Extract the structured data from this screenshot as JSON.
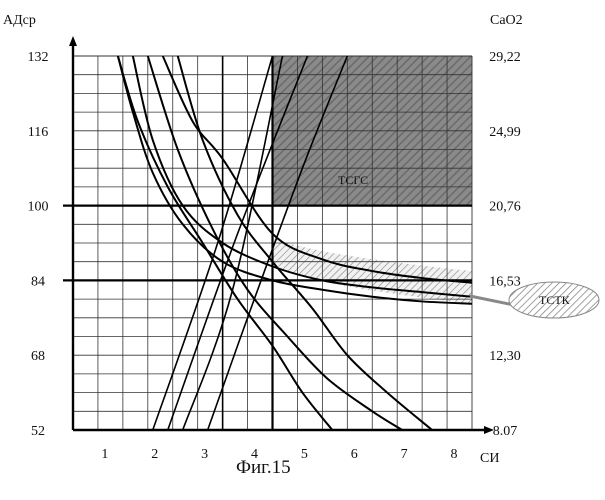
{
  "figure_caption": "Фиг.15",
  "chart_data": {
    "type": "line",
    "ylabel_left": "АДср",
    "ylabel_right": "CaO2",
    "xlabel": "СИ",
    "x_ticks": [
      "1",
      "2",
      "3",
      "4",
      "5",
      "6",
      "7",
      "8"
    ],
    "y_left_ticks": [
      "52",
      "68",
      "84",
      "100",
      "116",
      "132"
    ],
    "y_right_ticks": [
      "8.07",
      "12,30",
      "16,53",
      "20,76",
      "24,99",
      "29,22"
    ],
    "xlim": [
      0,
      8
    ],
    "ylim": [
      52,
      132
    ],
    "grid": true,
    "threshold_lines": {
      "x": 4,
      "y_upper": 100,
      "y_lower": 84
    },
    "regions": [
      {
        "label": "ТСГС",
        "x_range": [
          4,
          8
        ],
        "y_range": [
          100,
          132
        ],
        "fill": "dark-hatched"
      },
      {
        "label": "ТСТК",
        "x_range": [
          4,
          8
        ],
        "y_upper": [
          94,
          86
        ],
        "y_lower": [
          88,
          79
        ],
        "fill": "light-hatched"
      }
    ],
    "series": [
      {
        "kind": "hyperbola",
        "points": [
          [
            1.2,
            132
          ],
          [
            1.6,
            114
          ],
          [
            2.2,
            100
          ],
          [
            3,
            92
          ],
          [
            4,
            87
          ],
          [
            5,
            84
          ],
          [
            6,
            82.5
          ],
          [
            7,
            81.5
          ],
          [
            8,
            80.5
          ]
        ]
      },
      {
        "kind": "hyperbola",
        "points": [
          [
            1.8,
            132
          ],
          [
            2.4,
            118
          ],
          [
            3,
            110
          ],
          [
            4,
            94
          ],
          [
            5,
            88.5
          ],
          [
            6,
            86
          ],
          [
            7,
            84.5
          ],
          [
            8,
            83.5
          ]
        ]
      },
      {
        "kind": "hyperbola",
        "points": [
          [
            2.1,
            132
          ],
          [
            2.6,
            114
          ],
          [
            3.3,
            98
          ],
          [
            4,
            88
          ],
          [
            4.8,
            78
          ],
          [
            5.5,
            68
          ],
          [
            6.3,
            60
          ],
          [
            7.2,
            52
          ]
        ]
      },
      {
        "kind": "hyperbola",
        "points": [
          [
            1.5,
            132
          ],
          [
            2.1,
            112
          ],
          [
            2.8,
            95
          ],
          [
            3.5,
            82
          ],
          [
            4.3,
            72
          ],
          [
            5.1,
            63
          ],
          [
            6,
            56
          ],
          [
            6.6,
            52
          ]
        ]
      },
      {
        "kind": "hyperbola",
        "points": [
          [
            0.9,
            132
          ],
          [
            1.3,
            118
          ],
          [
            1.9,
            104
          ],
          [
            2.6,
            92
          ],
          [
            3.3,
            80
          ],
          [
            4,
            70
          ],
          [
            4.6,
            60
          ],
          [
            5.2,
            52
          ]
        ]
      },
      {
        "kind": "hyperbola",
        "points": [
          [
            0.9,
            132
          ],
          [
            1.2,
            120
          ],
          [
            1.6,
            107
          ],
          [
            2.2,
            96
          ],
          [
            3,
            88
          ],
          [
            4,
            84
          ],
          [
            5,
            82
          ],
          [
            6,
            80.5
          ],
          [
            7,
            79.5
          ],
          [
            8,
            79
          ]
        ]
      },
      {
        "kind": "ray",
        "points": [
          [
            1.6,
            52
          ],
          [
            2.9,
            92
          ],
          [
            4,
            132
          ]
        ]
      },
      {
        "kind": "ray",
        "points": [
          [
            2.2,
            52
          ],
          [
            3.2,
            82
          ],
          [
            4.2,
            132
          ]
        ]
      },
      {
        "kind": "ray",
        "points": [
          [
            2.7,
            52
          ],
          [
            3.5,
            76
          ],
          [
            4.6,
            108
          ],
          [
            5.5,
            132
          ]
        ]
      },
      {
        "kind": "ray",
        "points": [
          [
            1.9,
            52
          ],
          [
            3.3,
            94
          ],
          [
            4.7,
            132
          ]
        ]
      }
    ]
  }
}
